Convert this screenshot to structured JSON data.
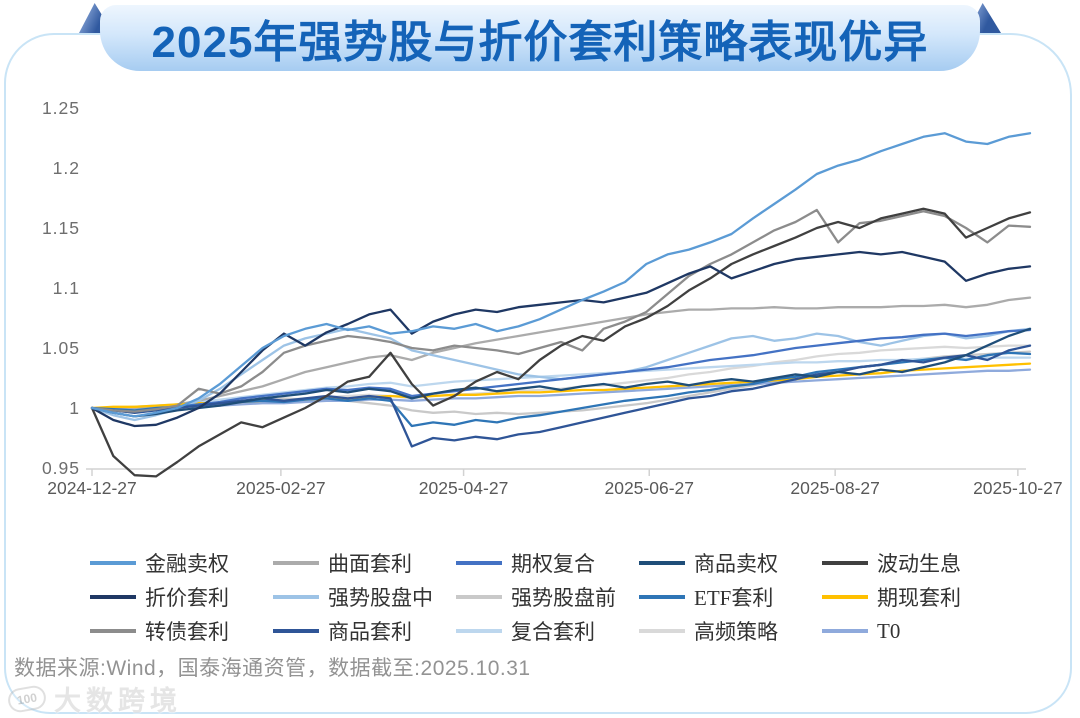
{
  "banner": {
    "title": "2025年强势股与折价套利策略表现优异"
  },
  "chart_data": {
    "type": "line",
    "title": "2025年强势股与折价套利策略表现优异",
    "xlabel": "",
    "ylabel": "",
    "ylim": [
      0.95,
      1.25
    ],
    "grid": false,
    "legend_position": "bottom",
    "y_tick_labels": [
      "1.25",
      "1.2",
      "1.15",
      "1.1",
      "1.05",
      "1",
      "0.95"
    ],
    "y_tick_values": [
      1.25,
      1.2,
      1.15,
      1.1,
      1.05,
      1.0,
      0.95
    ],
    "x_tick_labels": [
      "2024-12-27",
      "2025-02-27",
      "2025-04-27",
      "2025-06-27",
      "2025-08-27",
      "2025-10-27"
    ],
    "x_tick_weeks": [
      0,
      8.86,
      17.43,
      26.14,
      34.86,
      43.43
    ],
    "weeks_total": 44,
    "series": [
      {
        "name": "金融卖权",
        "color": "#5B9BD5",
        "z": 15,
        "values": [
          1.0,
          0.996,
          0.993,
          0.996,
          1.0,
          1.008,
          1.02,
          1.035,
          1.05,
          1.06,
          1.066,
          1.07,
          1.065,
          1.068,
          1.062,
          1.064,
          1.068,
          1.066,
          1.07,
          1.064,
          1.068,
          1.074,
          1.082,
          1.09,
          1.097,
          1.105,
          1.12,
          1.128,
          1.132,
          1.138,
          1.145,
          1.158,
          1.17,
          1.182,
          1.195,
          1.202,
          1.207,
          1.214,
          1.22,
          1.226,
          1.229,
          1.222,
          1.22,
          1.226,
          1.229
        ]
      },
      {
        "name": "曲面套利",
        "color": "#ABABAB",
        "z": 5,
        "values": [
          1.0,
          0.999,
          1.0,
          1.001,
          1.003,
          1.006,
          1.01,
          1.014,
          1.018,
          1.024,
          1.03,
          1.034,
          1.038,
          1.042,
          1.044,
          1.04,
          1.046,
          1.05,
          1.054,
          1.057,
          1.06,
          1.063,
          1.066,
          1.069,
          1.072,
          1.075,
          1.078,
          1.08,
          1.082,
          1.082,
          1.083,
          1.083,
          1.084,
          1.083,
          1.083,
          1.084,
          1.084,
          1.084,
          1.085,
          1.085,
          1.086,
          1.084,
          1.086,
          1.09,
          1.092
        ]
      },
      {
        "name": "期权复合",
        "color": "#4472C4",
        "z": 8,
        "values": [
          1.0,
          0.998,
          0.997,
          0.999,
          1.001,
          1.003,
          1.005,
          1.008,
          1.01,
          1.012,
          1.014,
          1.016,
          1.015,
          1.017,
          1.016,
          1.01,
          1.012,
          1.014,
          1.016,
          1.018,
          1.02,
          1.022,
          1.024,
          1.026,
          1.028,
          1.03,
          1.032,
          1.034,
          1.037,
          1.04,
          1.042,
          1.044,
          1.047,
          1.05,
          1.052,
          1.054,
          1.056,
          1.058,
          1.059,
          1.061,
          1.062,
          1.06,
          1.062,
          1.064,
          1.065
        ]
      },
      {
        "name": "商品卖权",
        "color": "#1F4E79",
        "z": 11,
        "values": [
          1.0,
          0.996,
          0.993,
          0.995,
          0.998,
          1.0,
          1.002,
          1.005,
          1.008,
          1.01,
          1.012,
          1.015,
          1.013,
          1.016,
          1.014,
          1.008,
          1.012,
          1.015,
          1.017,
          1.014,
          1.016,
          1.018,
          1.015,
          1.018,
          1.02,
          1.017,
          1.02,
          1.022,
          1.019,
          1.022,
          1.024,
          1.022,
          1.025,
          1.028,
          1.026,
          1.03,
          1.028,
          1.032,
          1.03,
          1.034,
          1.038,
          1.044,
          1.052,
          1.06,
          1.066
        ]
      },
      {
        "name": "波动生息",
        "color": "#404040",
        "z": 13,
        "values": [
          1.0,
          0.96,
          0.944,
          0.943,
          0.955,
          0.968,
          0.978,
          0.988,
          0.984,
          0.992,
          1.0,
          1.01,
          1.022,
          1.026,
          1.046,
          1.02,
          1.002,
          1.01,
          1.022,
          1.03,
          1.024,
          1.04,
          1.052,
          1.06,
          1.056,
          1.068,
          1.075,
          1.085,
          1.098,
          1.108,
          1.12,
          1.128,
          1.135,
          1.142,
          1.15,
          1.155,
          1.15,
          1.158,
          1.162,
          1.166,
          1.162,
          1.142,
          1.15,
          1.158,
          1.163
        ]
      },
      {
        "name": "折价套利",
        "color": "#1F3864",
        "z": 14,
        "values": [
          1.0,
          0.99,
          0.985,
          0.986,
          0.992,
          1.0,
          1.012,
          1.03,
          1.048,
          1.062,
          1.052,
          1.063,
          1.07,
          1.078,
          1.082,
          1.062,
          1.072,
          1.078,
          1.082,
          1.08,
          1.084,
          1.086,
          1.088,
          1.09,
          1.088,
          1.092,
          1.096,
          1.104,
          1.112,
          1.118,
          1.108,
          1.114,
          1.12,
          1.124,
          1.126,
          1.128,
          1.13,
          1.128,
          1.13,
          1.126,
          1.122,
          1.106,
          1.112,
          1.116,
          1.118
        ]
      },
      {
        "name": "强势股盘中",
        "color": "#9DC3E6",
        "z": 7,
        "values": [
          1.0,
          0.994,
          0.99,
          0.994,
          0.999,
          1.006,
          1.016,
          1.028,
          1.04,
          1.052,
          1.058,
          1.062,
          1.066,
          1.062,
          1.058,
          1.048,
          1.044,
          1.04,
          1.036,
          1.032,
          1.028,
          1.026,
          1.024,
          1.026,
          1.028,
          1.03,
          1.034,
          1.04,
          1.046,
          1.052,
          1.058,
          1.06,
          1.056,
          1.058,
          1.062,
          1.06,
          1.055,
          1.052,
          1.056,
          1.06,
          1.062,
          1.058,
          1.06,
          1.064,
          1.066
        ]
      },
      {
        "name": "强势股盘前",
        "color": "#C9C9C9",
        "z": 2,
        "values": [
          1.0,
          0.999,
          0.998,
          0.999,
          1.0,
          1.001,
          1.003,
          1.004,
          1.006,
          1.008,
          1.007,
          1.008,
          1.006,
          1.004,
          1.002,
          0.998,
          0.996,
          0.997,
          0.995,
          0.996,
          0.995,
          0.996,
          0.997,
          0.998,
          1.0,
          1.002,
          1.004,
          1.007,
          1.01,
          1.013,
          1.016,
          1.019,
          1.022,
          1.025,
          1.028,
          1.031,
          1.034,
          1.036,
          1.039,
          1.041,
          1.043,
          1.044,
          1.045,
          1.046,
          1.047
        ]
      },
      {
        "name": "ETF套利",
        "color": "#2E75B6",
        "z": 9,
        "values": [
          1.0,
          0.999,
          0.998,
          1.0,
          1.001,
          1.002,
          1.004,
          1.005,
          1.006,
          1.005,
          1.007,
          1.008,
          1.006,
          1.008,
          1.006,
          0.985,
          0.988,
          0.986,
          0.99,
          0.988,
          0.992,
          0.994,
          0.997,
          1.0,
          1.003,
          1.006,
          1.008,
          1.01,
          1.013,
          1.015,
          1.018,
          1.02,
          1.024,
          1.026,
          1.03,
          1.032,
          1.034,
          1.036,
          1.038,
          1.04,
          1.042,
          1.04,
          1.044,
          1.046,
          1.045
        ]
      },
      {
        "name": "期现套利",
        "color": "#FFC000",
        "z": 6,
        "values": [
          1.0,
          1.001,
          1.001,
          1.002,
          1.003,
          1.004,
          1.004,
          1.005,
          1.006,
          1.006,
          1.007,
          1.008,
          1.008,
          1.009,
          1.01,
          1.009,
          1.01,
          1.011,
          1.011,
          1.012,
          1.013,
          1.013,
          1.014,
          1.015,
          1.015,
          1.016,
          1.017,
          1.018,
          1.019,
          1.02,
          1.021,
          1.022,
          1.023,
          1.024,
          1.026,
          1.027,
          1.028,
          1.029,
          1.031,
          1.032,
          1.033,
          1.034,
          1.035,
          1.036,
          1.037
        ]
      },
      {
        "name": "转债套利",
        "color": "#8C8C8C",
        "z": 12,
        "values": [
          1.0,
          0.998,
          0.997,
          0.999,
          1.002,
          1.016,
          1.012,
          1.018,
          1.03,
          1.046,
          1.052,
          1.056,
          1.06,
          1.058,
          1.055,
          1.05,
          1.048,
          1.052,
          1.05,
          1.048,
          1.045,
          1.05,
          1.055,
          1.048,
          1.066,
          1.072,
          1.08,
          1.095,
          1.11,
          1.12,
          1.128,
          1.138,
          1.148,
          1.155,
          1.165,
          1.138,
          1.154,
          1.156,
          1.16,
          1.164,
          1.16,
          1.15,
          1.138,
          1.152,
          1.151
        ]
      },
      {
        "name": "商品套利",
        "color": "#2F5597",
        "z": 10,
        "values": [
          1.0,
          0.998,
          0.996,
          0.998,
          1.0,
          1.002,
          1.004,
          1.006,
          1.008,
          1.006,
          1.008,
          1.01,
          1.008,
          1.01,
          1.008,
          0.968,
          0.975,
          0.973,
          0.976,
          0.974,
          0.978,
          0.98,
          0.984,
          0.988,
          0.992,
          0.996,
          1.0,
          1.004,
          1.008,
          1.01,
          1.014,
          1.016,
          1.02,
          1.024,
          1.028,
          1.03,
          1.034,
          1.036,
          1.04,
          1.038,
          1.042,
          1.044,
          1.04,
          1.048,
          1.052
        ]
      },
      {
        "name": "复合套利",
        "color": "#BDD7EE",
        "z": 3,
        "values": [
          1.0,
          1.0,
          1.001,
          1.002,
          1.003,
          1.005,
          1.007,
          1.009,
          1.011,
          1.013,
          1.015,
          1.017,
          1.018,
          1.02,
          1.021,
          1.018,
          1.02,
          1.022,
          1.023,
          1.024,
          1.025,
          1.026,
          1.027,
          1.028,
          1.029,
          1.03,
          1.031,
          1.032,
          1.033,
          1.034,
          1.035,
          1.036,
          1.037,
          1.038,
          1.038,
          1.039,
          1.039,
          1.04,
          1.04,
          1.041,
          1.041,
          1.041,
          1.042,
          1.042,
          1.042
        ]
      },
      {
        "name": "高频策略",
        "color": "#D9D9D9",
        "z": 1,
        "values": [
          1.0,
          1.0,
          1.001,
          1.001,
          1.002,
          1.003,
          1.004,
          1.005,
          1.006,
          1.007,
          1.008,
          1.009,
          1.01,
          1.011,
          1.01,
          1.008,
          1.01,
          1.011,
          1.012,
          1.013,
          1.014,
          1.015,
          1.016,
          1.018,
          1.019,
          1.021,
          1.023,
          1.025,
          1.028,
          1.03,
          1.033,
          1.035,
          1.038,
          1.04,
          1.043,
          1.045,
          1.046,
          1.048,
          1.049,
          1.05,
          1.051,
          1.05,
          1.051,
          1.052,
          1.052
        ]
      },
      {
        "name": "T0",
        "color": "#8FAADC",
        "z": 4,
        "values": [
          1.0,
          0.999,
          1.0,
          1.0,
          1.001,
          1.002,
          1.002,
          1.003,
          1.004,
          1.004,
          1.005,
          1.006,
          1.006,
          1.007,
          1.007,
          1.006,
          1.007,
          1.008,
          1.008,
          1.009,
          1.01,
          1.01,
          1.011,
          1.012,
          1.013,
          1.014,
          1.015,
          1.016,
          1.017,
          1.018,
          1.019,
          1.02,
          1.021,
          1.022,
          1.023,
          1.024,
          1.025,
          1.026,
          1.027,
          1.028,
          1.029,
          1.03,
          1.031,
          1.031,
          1.032
        ]
      }
    ]
  },
  "footer": {
    "source_text": "数据来源:Wind，国泰海通资管，数据截至:2025.10.31",
    "watermark_logo": "100",
    "watermark_text": "大数跨境"
  },
  "style": {
    "axis_color": "#d2d2d2",
    "tick_label_color": "#6e6e6e",
    "x_label_color": "#595959",
    "title_color": "#1463b8",
    "card_border_color": "#c9e4f6"
  }
}
